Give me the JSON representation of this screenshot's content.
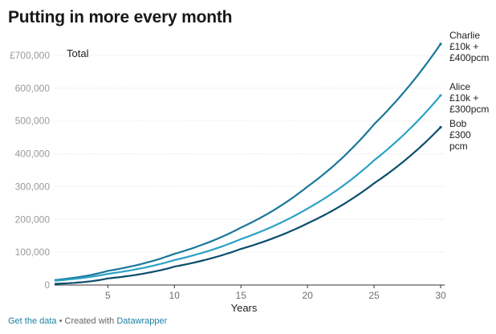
{
  "chart_data": {
    "type": "line",
    "title": "Putting in more every month",
    "ylabel": "Total",
    "xlabel": "Years",
    "xlim": [
      1,
      30
    ],
    "ylim": [
      0,
      700000
    ],
    "x_ticks": [
      5,
      10,
      15,
      20,
      25,
      30
    ],
    "y_ticks": [
      {
        "value": 0,
        "label": "0"
      },
      {
        "value": 100000,
        "label": "100,000"
      },
      {
        "value": 200000,
        "label": "200,000"
      },
      {
        "value": 300000,
        "label": "300,000"
      },
      {
        "value": 400000,
        "label": "400,000"
      },
      {
        "value": 500000,
        "label": "500,000"
      },
      {
        "value": 600000,
        "label": "600,000"
      },
      {
        "value": 700000,
        "label": "£700,000"
      }
    ],
    "grid": true,
    "x": [
      1,
      5,
      10,
      15,
      20,
      25,
      30
    ],
    "series": [
      {
        "name": "Charlie",
        "label_lines": [
          "Charlie",
          "£10k +",
          "£400pcm"
        ],
        "color": "#18779a",
        "values": [
          15000,
          43000,
          95000,
          175000,
          300000,
          490000,
          735000
        ]
      },
      {
        "name": "Alice",
        "label_lines": [
          "Alice",
          "£10k +",
          "£300pcm"
        ],
        "color": "#2ba1c6",
        "values": [
          13000,
          34000,
          76000,
          140000,
          233000,
          380000,
          578000
        ]
      },
      {
        "name": "Bob",
        "label_lines": [
          "Bob",
          "£300",
          "pcm"
        ],
        "color": "#0a4d6c",
        "values": [
          3500,
          20000,
          56000,
          110000,
          188000,
          310000,
          481000
        ]
      }
    ]
  },
  "footer": {
    "get_data": "Get the data",
    "separator": " • Created with ",
    "datawrapper": "Datawrapper"
  }
}
